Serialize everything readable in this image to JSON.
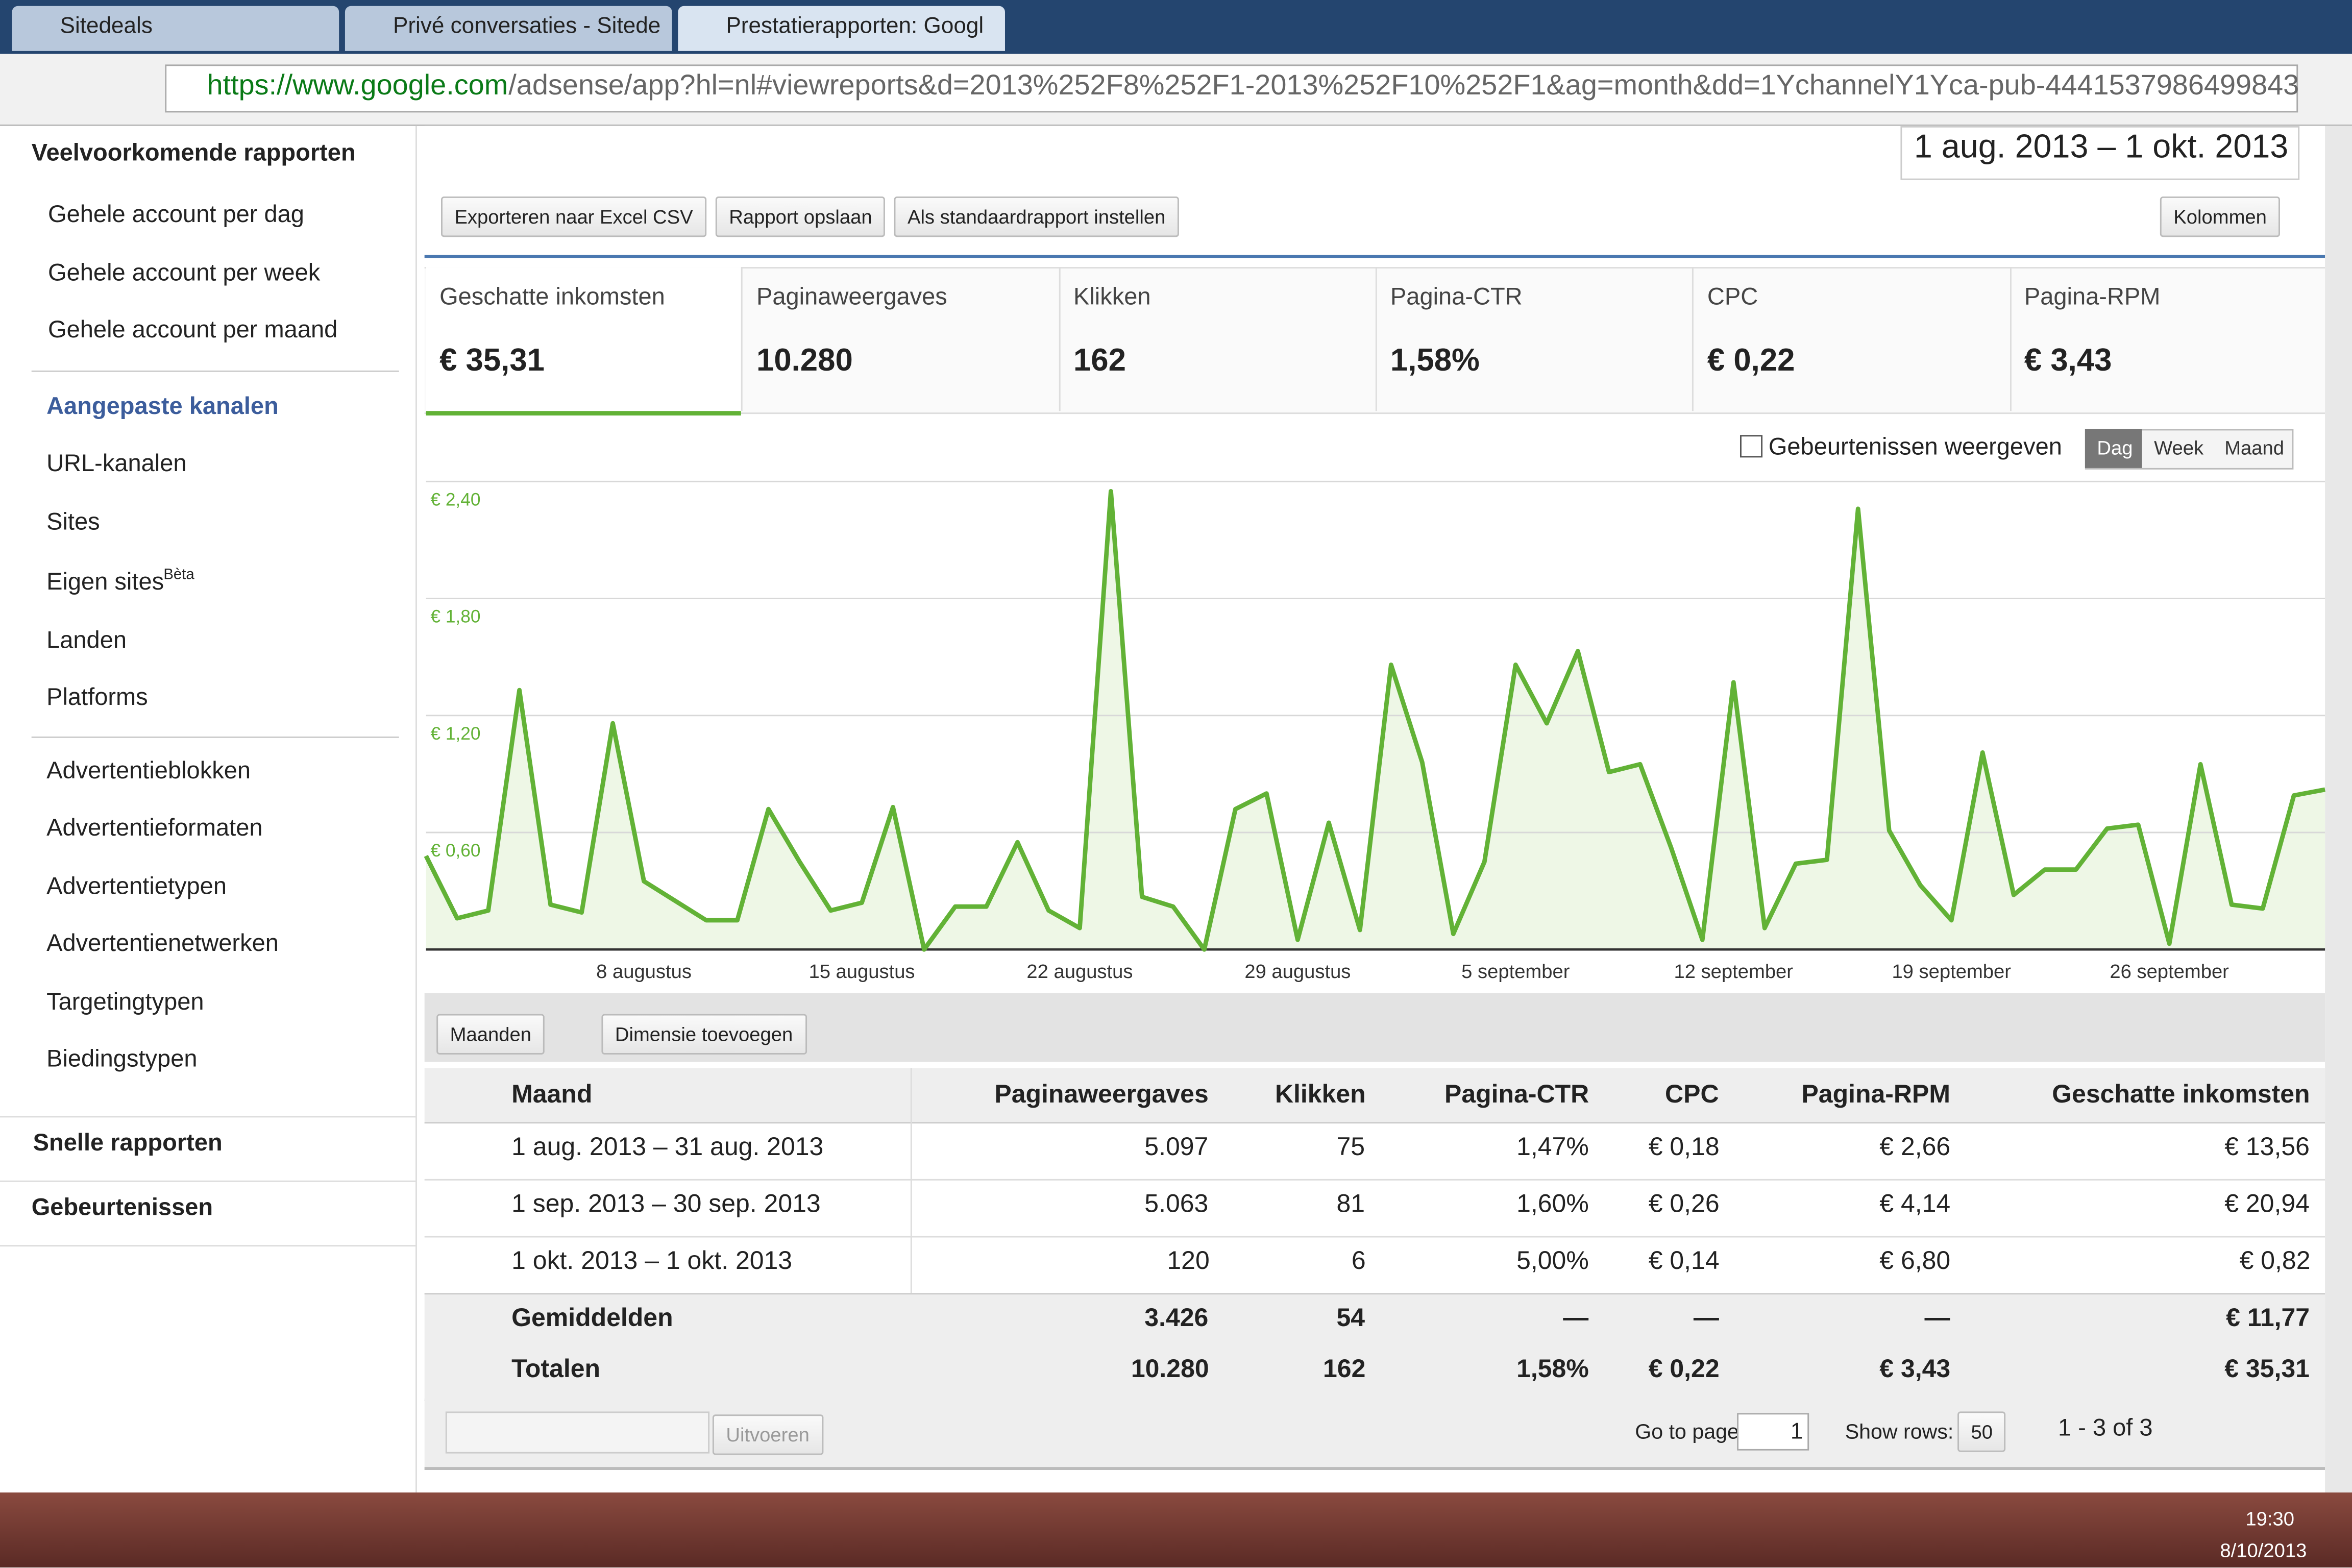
{
  "browser": {
    "tabs": [
      "Sitedeals",
      "Privé conversaties - Sitede",
      "Prestatierapporten: Googl"
    ],
    "url_host": "https://www.google.com",
    "url_path": "/adsense/app?hl=nl#viewreports&d=2013%252F8%252F1-2013%252F10%252F1&ag=month&dd=1YchannelY1Yca-pub-4441537986499843"
  },
  "sidebar": {
    "heading": "Veelvoorkomende rapporten",
    "items": [
      "Gehele account per dag",
      "Gehele account per week",
      "Gehele account per maand"
    ],
    "section": "Aangepaste kanalen",
    "section_items": [
      "URL-kanalen",
      "Sites",
      "Eigen sites",
      "Landen",
      "Platforms"
    ],
    "beta": "Bèta",
    "ad_items": [
      "Advertentieblokken",
      "Advertentieformaten",
      "Advertentietypen",
      "Advertentienetwerken",
      "Targetingtypen",
      "Biedingstypen"
    ],
    "quick": "Snelle rapporten",
    "events": "Gebeurtenissen"
  },
  "toolbar": {
    "date_range": "1 aug. 2013 – 1 okt. 2013",
    "buttons": [
      "Exporteren naar Excel CSV",
      "Rapport opslaan",
      "Als standaardrapport instellen"
    ],
    "columns": "Kolommen"
  },
  "metrics": [
    {
      "label": "Geschatte inkomsten",
      "value": "€ 35,31"
    },
    {
      "label": "Paginaweergaves",
      "value": "10.280"
    },
    {
      "label": "Klikken",
      "value": "162"
    },
    {
      "label": "Pagina-CTR",
      "value": "1,58%"
    },
    {
      "label": "CPC",
      "value": "€ 0,22"
    },
    {
      "label": "Pagina-RPM",
      "value": "€ 3,43"
    }
  ],
  "chart_options": {
    "events": "Gebeurtenissen weergeven",
    "periods": [
      "Dag",
      "Week",
      "Maand"
    ]
  },
  "chart_data": {
    "type": "line",
    "color": "#62b236",
    "fill": "#eef7e6",
    "grid": true,
    "categories": [
      null,
      null,
      null,
      null,
      null,
      null,
      null,
      "8 augustus",
      null,
      null,
      null,
      null,
      null,
      null,
      "15 augustus",
      null,
      null,
      null,
      null,
      null,
      null,
      "22 augustus",
      null,
      null,
      null,
      null,
      null,
      null,
      "29 augustus",
      null,
      null,
      null,
      null,
      null,
      null,
      "5 september",
      null,
      null,
      null,
      null,
      null,
      null,
      "12 september",
      null,
      null,
      null,
      null,
      null,
      null,
      "19 september",
      null,
      null,
      null,
      null,
      null,
      null,
      "26 september",
      null,
      null,
      null,
      null,
      null
    ],
    "values": [
      0.48,
      0.16,
      0.2,
      1.33,
      0.23,
      0.19,
      1.16,
      0.35,
      0.25,
      0.15,
      0.15,
      0.72,
      0.45,
      0.2,
      0.24,
      0.73,
      0,
      0.22,
      0.22,
      0.55,
      0.2,
      0.11,
      2.35,
      0.27,
      0.22,
      0,
      0.72,
      0.8,
      0.05,
      0.65,
      0.1,
      1.46,
      0.96,
      0.08,
      0.45,
      1.46,
      1.16,
      1.53,
      0.91,
      0.95,
      0.52,
      0.05,
      1.37,
      0.11,
      0.44,
      0.46,
      2.26,
      0.61,
      0.33,
      0.15,
      1.01,
      0.28,
      0.41,
      0.41,
      0.62,
      0.64,
      0.03,
      0.95,
      0.23,
      0.21,
      0.79,
      0.82
    ],
    "ylim": [
      0,
      2.4
    ],
    "yticks": [
      {
        "value": 0.6,
        "label": "€ 0,60"
      },
      {
        "value": 1.2,
        "label": "€ 1,20"
      },
      {
        "value": 1.8,
        "label": "€ 1,80"
      },
      {
        "value": 2.4,
        "label": "€ 2,40"
      }
    ]
  },
  "controls": {
    "dimension": "Maanden",
    "add": "Dimensie toevoegen"
  },
  "table": {
    "headers": [
      "Maand",
      "Paginaweergaves",
      "Klikken",
      "Pagina-CTR",
      "CPC",
      "Pagina-RPM",
      "Geschatte inkomsten"
    ],
    "rows": [
      [
        "1 aug. 2013 – 31 aug. 2013",
        "5.097",
        "75",
        "1,47%",
        "€ 0,18",
        "€ 2,66",
        "€ 13,56"
      ],
      [
        "1 sep. 2013 – 30 sep. 2013",
        "5.063",
        "81",
        "1,60%",
        "€ 0,26",
        "€ 4,14",
        "€ 20,94"
      ],
      [
        "1 okt. 2013 – 1 okt. 2013",
        "120",
        "6",
        "5,00%",
        "€ 0,14",
        "€ 6,80",
        "€ 0,82"
      ]
    ],
    "averages": [
      "Gemiddelden",
      "3.426",
      "54",
      "—",
      "—",
      "—",
      "€ 11,77"
    ],
    "totals": [
      "Totalen",
      "10.280",
      "162",
      "1,58%",
      "€ 0,22",
      "€ 3,43",
      "€ 35,31"
    ]
  },
  "pager": {
    "run": "Uitvoeren",
    "goto": "Go to page:",
    "page": "1",
    "show": "Show rows:",
    "rows": "50",
    "range": "1 - 3 of 3"
  },
  "taskbar": {
    "time": "19:30",
    "date": "8/10/2013"
  }
}
